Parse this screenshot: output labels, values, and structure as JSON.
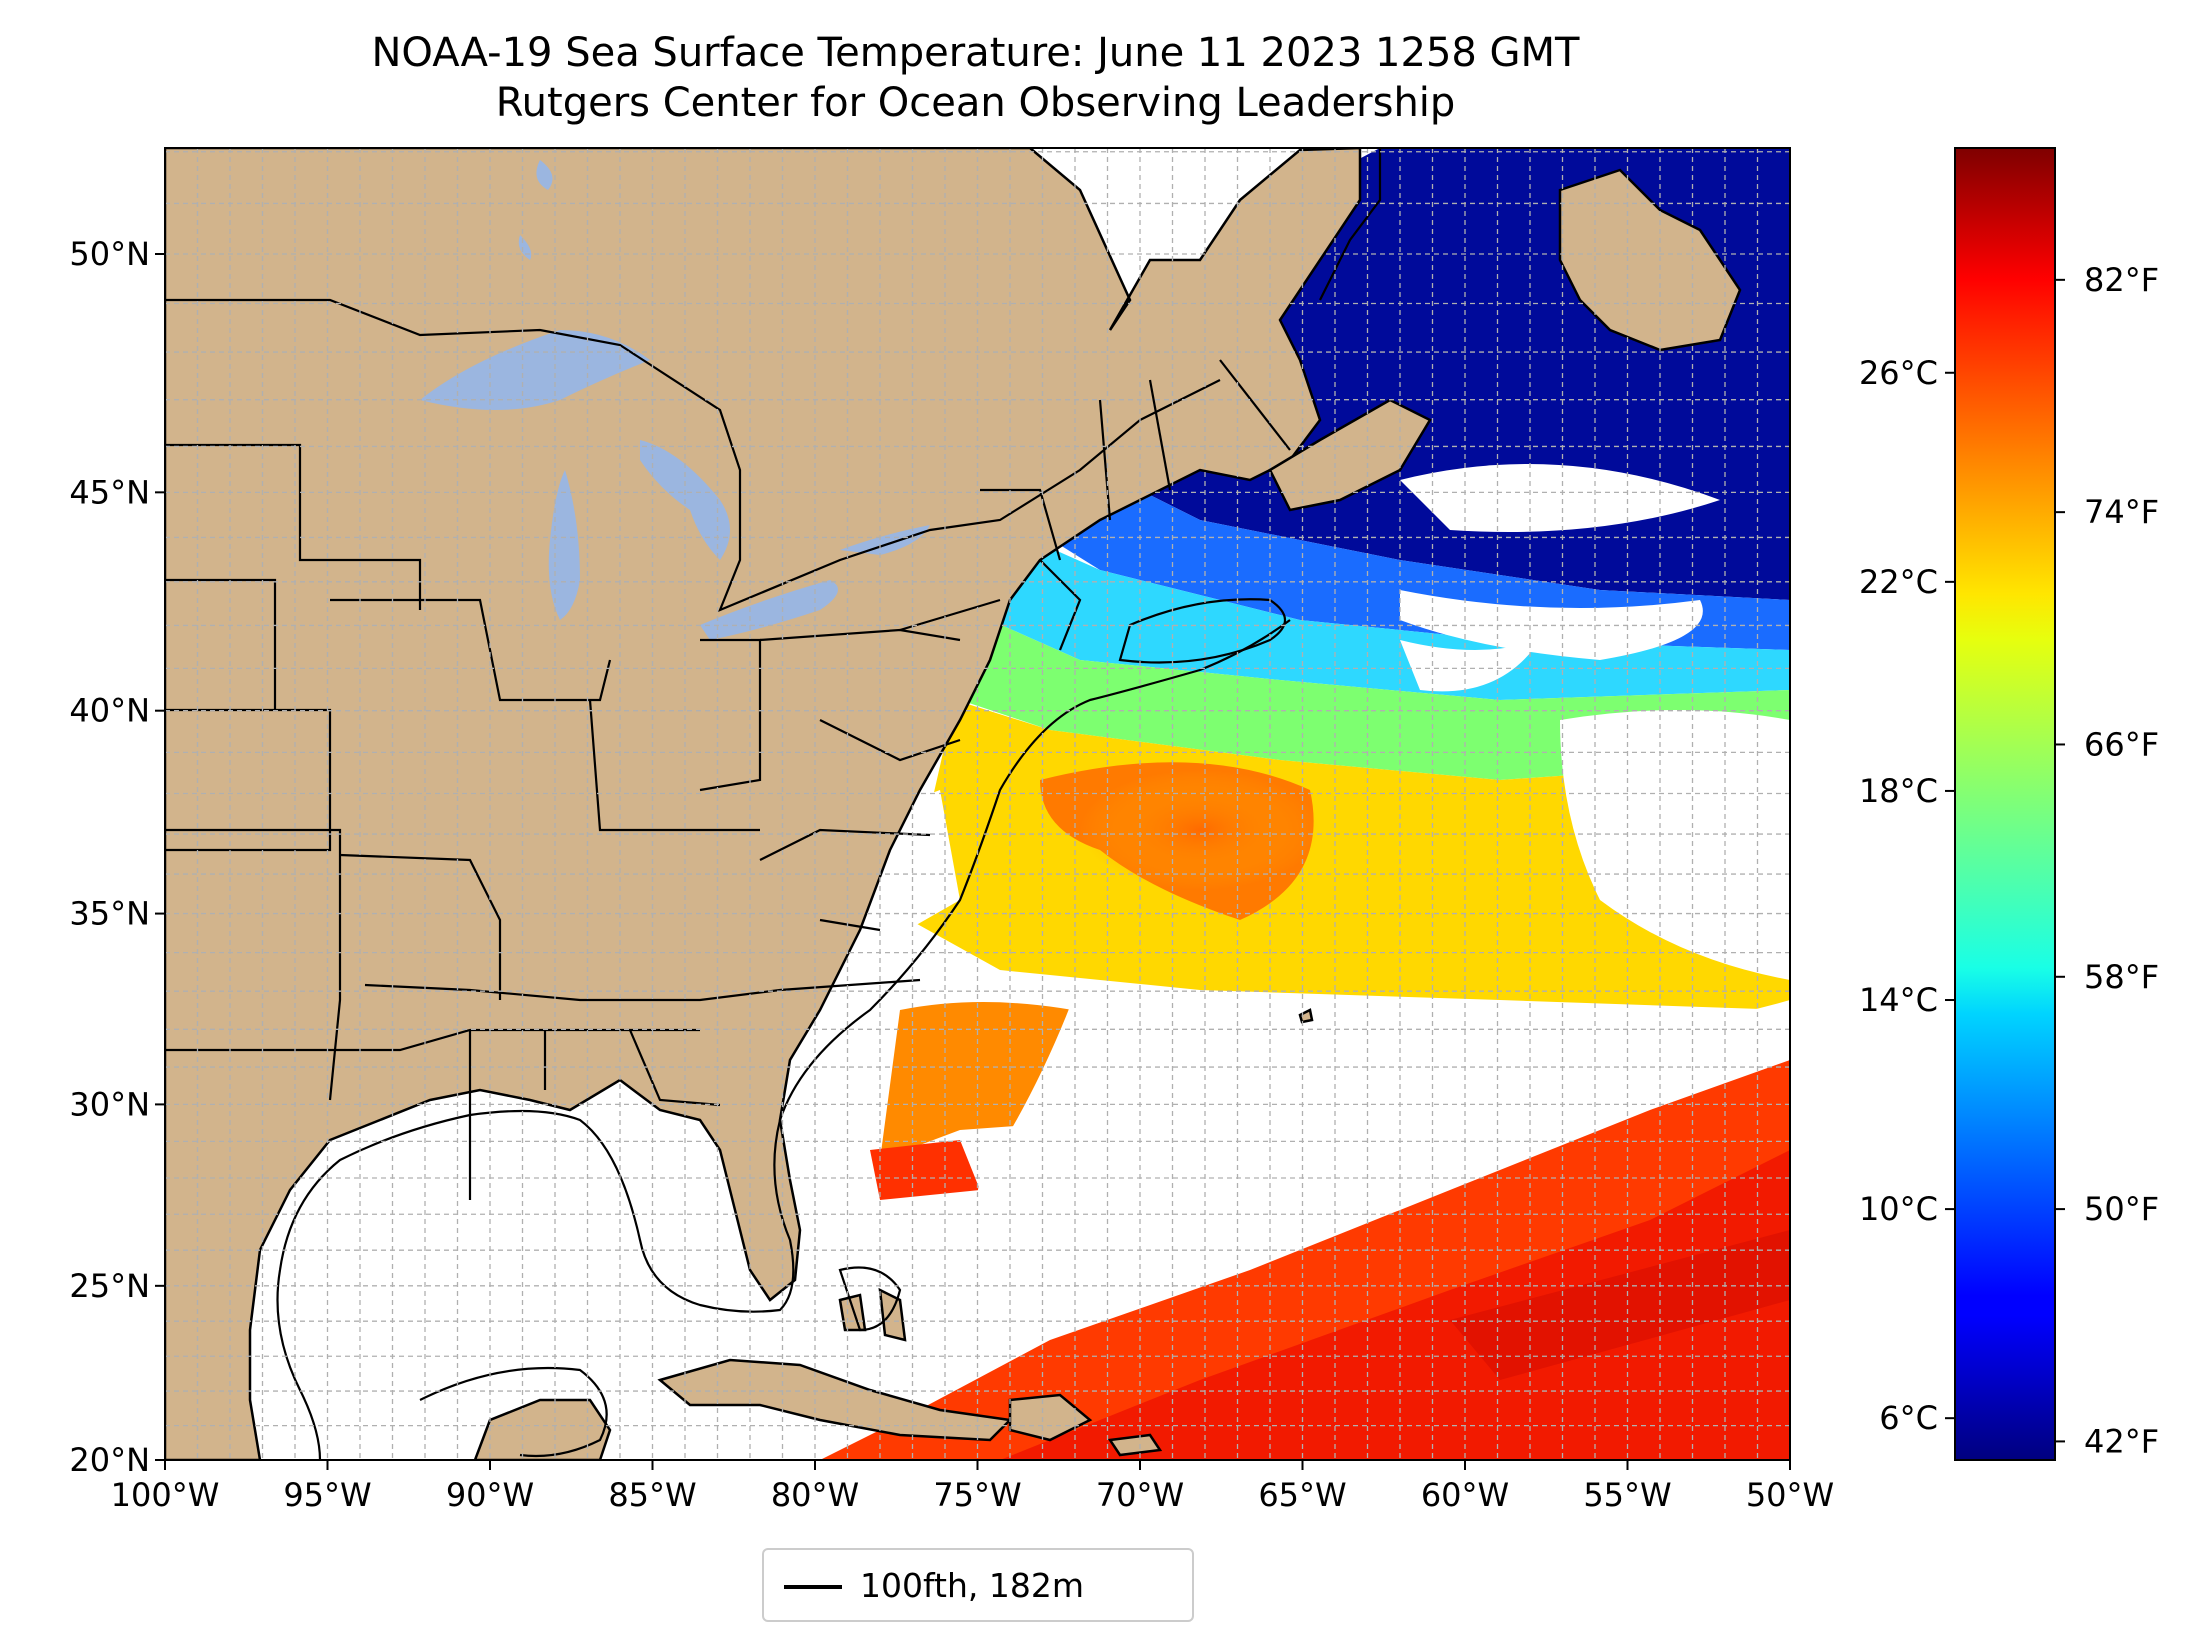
{
  "map": {
    "title_line1": "NOAA-19 Sea Surface Temperature: June 11 2023 1258 GMT",
    "title_line2": "Rutgers Center for Ocean Observing Leadership",
    "legend_label": "100fth, 182m",
    "lat_ticks": [
      "50°N",
      "45°N",
      "40°N",
      "35°N",
      "30°N",
      "25°N",
      "20°N"
    ],
    "lon_ticks": [
      "100°W",
      "95°W",
      "90°W",
      "85°W",
      "80°W",
      "75°W",
      "70°W",
      "65°W",
      "60°W",
      "55°W",
      "50°W"
    ],
    "colorbar_celsius": [
      "26°C",
      "22°C",
      "18°C",
      "14°C",
      "10°C",
      "6°C"
    ],
    "colorbar_fahrenheit": [
      "82°F",
      "74°F",
      "66°F",
      "58°F",
      "50°F",
      "42°F"
    ],
    "colors": {
      "land": "#d2b48c",
      "lakes": "#9bb6e0",
      "no_data": "#ffffff",
      "colormap": "jet"
    }
  }
}
